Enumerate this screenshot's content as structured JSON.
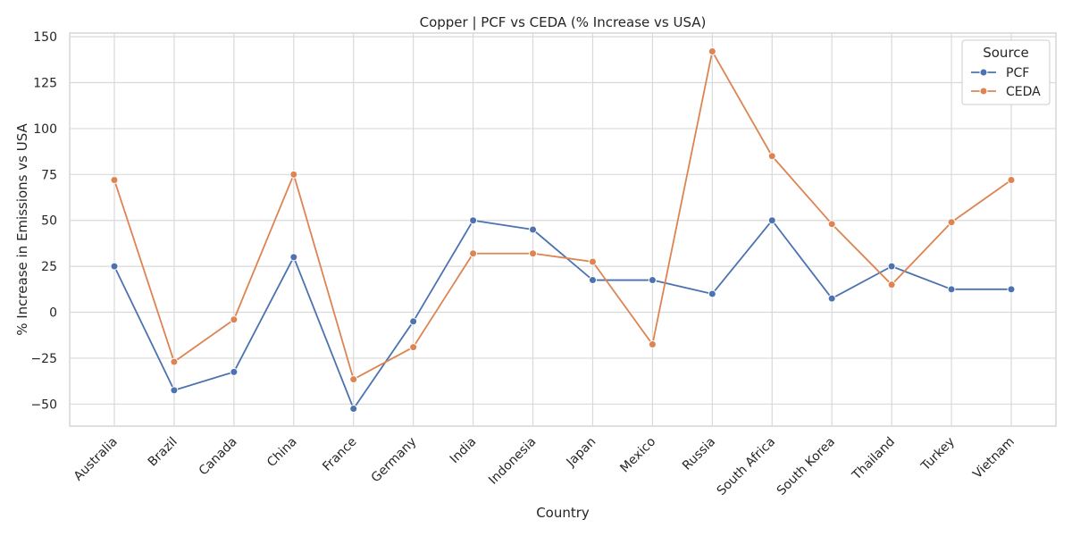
{
  "chart_data": {
    "type": "line",
    "title": "Copper | PCF vs CEDA (% Increase vs USA)",
    "xlabel": "Country",
    "ylabel": "% Increase in Emissions vs USA",
    "categories": [
      "Australia",
      "Brazil",
      "Canada",
      "China",
      "France",
      "Germany",
      "India",
      "Indonesia",
      "Japan",
      "Mexico",
      "Russia",
      "South Africa",
      "South Korea",
      "Thailand",
      "Turkey",
      "Vietnam"
    ],
    "yticks": [
      -50,
      -25,
      0,
      25,
      50,
      75,
      100,
      125,
      150
    ],
    "ytick_labels": [
      "−50",
      "−25",
      "0",
      "25",
      "50",
      "75",
      "100",
      "125",
      "150"
    ],
    "ylim": [
      -62,
      152
    ],
    "grid": true,
    "legend": {
      "title": "Source",
      "placement": "top-right"
    },
    "series": [
      {
        "name": "PCF",
        "color": "#4c72b0",
        "marker": "circle",
        "values": [
          25,
          -42.5,
          -32.5,
          30,
          -52.5,
          -5,
          50,
          45,
          17.5,
          17.5,
          10,
          50,
          7.5,
          25,
          12.5,
          12.5
        ]
      },
      {
        "name": "CEDA",
        "color": "#dd8452",
        "marker": "circle",
        "values": [
          72,
          -27,
          -4,
          75,
          -36.5,
          -19,
          32,
          32,
          27.5,
          -17.5,
          142,
          85,
          48,
          15,
          49,
          72
        ]
      }
    ]
  }
}
